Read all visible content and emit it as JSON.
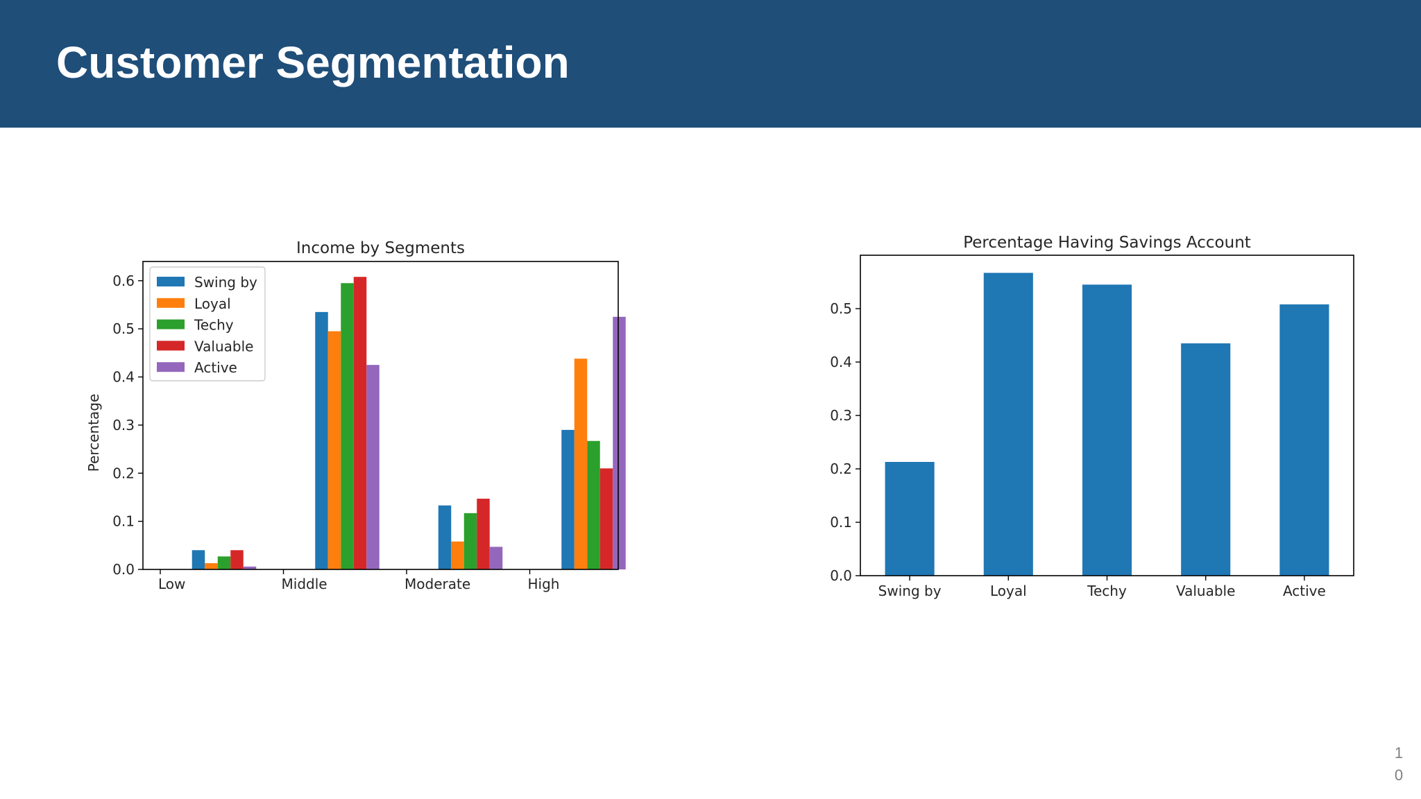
{
  "slide": {
    "title": "Customer Segmentation",
    "page_number_line1": "1",
    "page_number_line2": "0"
  },
  "colors": {
    "header_bg": "#1f4e79",
    "header_text": "#ffffff"
  },
  "chart_data": [
    {
      "type": "bar",
      "title": "Income by Segments",
      "xlabel": "",
      "ylabel": "Percentage",
      "ylim": [
        0,
        0.64
      ],
      "yticks": [
        "0.0",
        "0.1",
        "0.2",
        "0.3",
        "0.4",
        "0.5",
        "0.6"
      ],
      "categories": [
        "Low",
        "Middle",
        "Moderate",
        "High"
      ],
      "legend_position": "top-left",
      "series": [
        {
          "name": "Swing by",
          "color": "#1f77b4",
          "values": [
            0.04,
            0.535,
            0.133,
            0.29
          ]
        },
        {
          "name": "Loyal",
          "color": "#ff7f0e",
          "values": [
            0.013,
            0.495,
            0.058,
            0.438
          ]
        },
        {
          "name": "Techy",
          "color": "#2ca02c",
          "values": [
            0.027,
            0.595,
            0.117,
            0.267
          ]
        },
        {
          "name": "Valuable",
          "color": "#d62728",
          "values": [
            0.04,
            0.608,
            0.147,
            0.21
          ]
        },
        {
          "name": "Active",
          "color": "#9467bd",
          "values": [
            0.006,
            0.425,
            0.047,
            0.525
          ]
        }
      ]
    },
    {
      "type": "bar",
      "title": "Percentage Having Savings Account",
      "xlabel": "",
      "ylabel": "",
      "ylim": [
        0,
        0.6
      ],
      "yticks": [
        "0.0",
        "0.1",
        "0.2",
        "0.3",
        "0.4",
        "0.5"
      ],
      "categories": [
        "Swing by",
        "Loyal",
        "Techy",
        "Valuable",
        "Active"
      ],
      "color": "#1f77b4",
      "values": [
        0.213,
        0.567,
        0.545,
        0.435,
        0.508
      ]
    }
  ]
}
